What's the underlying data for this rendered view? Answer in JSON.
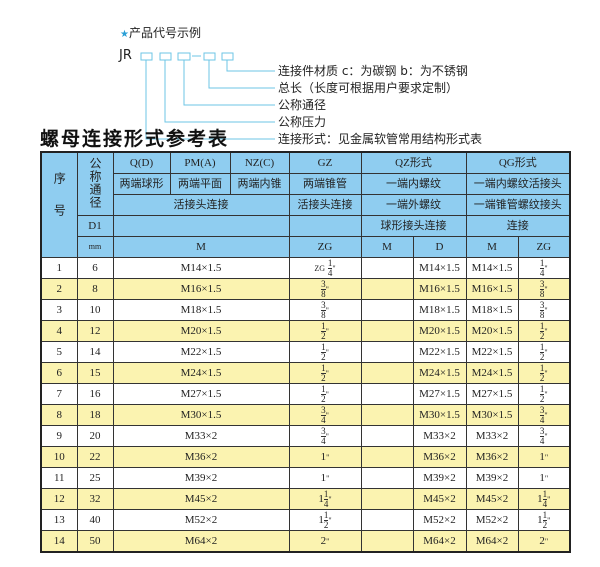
{
  "code_example": {
    "title": "产品代号示例",
    "prefix": "JR",
    "labels": [
      "连接件材质   c：为碳钢   b：为不锈钢",
      "总长（长度可根据用户要求定制）",
      "公称通径",
      "公称压力",
      "连接形式：见金属软管常用结构形式表"
    ],
    "accent_color": "#2a9fd6"
  },
  "section_title": "螺母连接形式参考表",
  "table": {
    "header": {
      "seq": "序号",
      "nominal": "公称通径",
      "q": "Q(D)",
      "pm": "PM(A)",
      "nz": "NZ(C)",
      "gz": "GZ",
      "qz": "QZ形式",
      "qg": "QG形式",
      "q_desc": "两端球形",
      "pm_desc": "两端平面",
      "nz_desc": "两端内锥",
      "gz_desc": "两端锥管",
      "qz_desc1": "一端内螺纹",
      "qg_desc1": "一端内螺纹活接头",
      "union": "活接头连接",
      "gz_union": "活接头连接",
      "qz_desc2": "一端外螺纹",
      "qg_desc2": "一端锥管螺纹接头",
      "d1": "D1",
      "qz_desc3": "球形接头连接",
      "qg_desc3": "连接",
      "mm": "mm",
      "m": "M",
      "zg": "ZG",
      "qz_m": "M",
      "qz_d": "D",
      "qg_m": "M",
      "qg_zg": "ZG"
    },
    "rows": [
      {
        "no": "1",
        "d1": "6",
        "m": "M14×1.5",
        "zg": {
          "prefix": "ZG",
          "whole": "",
          "num": "1",
          "den": "4"
        },
        "qz_m": "",
        "qz_d": "M14×1.5",
        "qg_m": "M14×1.5",
        "qg_zg": {
          "whole": "",
          "num": "1",
          "den": "4"
        }
      },
      {
        "no": "2",
        "d1": "8",
        "m": "M16×1.5",
        "zg": {
          "whole": "",
          "num": "3",
          "den": "8"
        },
        "qz_m": "",
        "qz_d": "M16×1.5",
        "qg_m": "M16×1.5",
        "qg_zg": {
          "whole": "",
          "num": "3",
          "den": "8"
        }
      },
      {
        "no": "3",
        "d1": "10",
        "m": "M18×1.5",
        "zg": {
          "whole": "",
          "num": "3",
          "den": "8"
        },
        "qz_m": "",
        "qz_d": "M18×1.5",
        "qg_m": "M18×1.5",
        "qg_zg": {
          "whole": "",
          "num": "3",
          "den": "8"
        }
      },
      {
        "no": "4",
        "d1": "12",
        "m": "M20×1.5",
        "zg": {
          "whole": "",
          "num": "1",
          "den": "2"
        },
        "qz_m": "",
        "qz_d": "M20×1.5",
        "qg_m": "M20×1.5",
        "qg_zg": {
          "whole": "",
          "num": "1",
          "den": "2"
        }
      },
      {
        "no": "5",
        "d1": "14",
        "m": "M22×1.5",
        "zg": {
          "whole": "",
          "num": "1",
          "den": "2"
        },
        "qz_m": "",
        "qz_d": "M22×1.5",
        "qg_m": "M22×1.5",
        "qg_zg": {
          "whole": "",
          "num": "1",
          "den": "2"
        }
      },
      {
        "no": "6",
        "d1": "15",
        "m": "M24×1.5",
        "zg": {
          "whole": "",
          "num": "1",
          "den": "2"
        },
        "qz_m": "",
        "qz_d": "M24×1.5",
        "qg_m": "M24×1.5",
        "qg_zg": {
          "whole": "",
          "num": "1",
          "den": "2"
        }
      },
      {
        "no": "7",
        "d1": "16",
        "m": "M27×1.5",
        "zg": {
          "whole": "",
          "num": "1",
          "den": "2"
        },
        "qz_m": "",
        "qz_d": "M27×1.5",
        "qg_m": "M27×1.5",
        "qg_zg": {
          "whole": "",
          "num": "1",
          "den": "2"
        }
      },
      {
        "no": "8",
        "d1": "18",
        "m": "M30×1.5",
        "zg": {
          "whole": "",
          "num": "3",
          "den": "4"
        },
        "qz_m": "",
        "qz_d": "M30×1.5",
        "qg_m": "M30×1.5",
        "qg_zg": {
          "whole": "",
          "num": "3",
          "den": "4"
        }
      },
      {
        "no": "9",
        "d1": "20",
        "m": "M33×2",
        "zg": {
          "whole": "",
          "num": "3",
          "den": "4"
        },
        "qz_m": "",
        "qz_d": "M33×2",
        "qg_m": "M33×2",
        "qg_zg": {
          "whole": "",
          "num": "3",
          "den": "4"
        }
      },
      {
        "no": "10",
        "d1": "22",
        "m": "M36×2",
        "zg": {
          "whole": "1",
          "num": "",
          "den": ""
        },
        "qz_m": "",
        "qz_d": "M36×2",
        "qg_m": "M36×2",
        "qg_zg": {
          "whole": "1",
          "num": "",
          "den": ""
        }
      },
      {
        "no": "11",
        "d1": "25",
        "m": "M39×2",
        "zg": {
          "whole": "1",
          "num": "",
          "den": ""
        },
        "qz_m": "",
        "qz_d": "M39×2",
        "qg_m": "M39×2",
        "qg_zg": {
          "whole": "1",
          "num": "",
          "den": ""
        }
      },
      {
        "no": "12",
        "d1": "32",
        "m": "M45×2",
        "zg": {
          "whole": "1",
          "num": "1",
          "den": "4"
        },
        "qz_m": "",
        "qz_d": "M45×2",
        "qg_m": "M45×2",
        "qg_zg": {
          "whole": "1",
          "num": "1",
          "den": "4"
        }
      },
      {
        "no": "13",
        "d1": "40",
        "m": "M52×2",
        "zg": {
          "whole": "1",
          "num": "1",
          "den": "2"
        },
        "qz_m": "",
        "qz_d": "M52×2",
        "qg_m": "M52×2",
        "qg_zg": {
          "whole": "1",
          "num": "1",
          "den": "2"
        }
      },
      {
        "no": "14",
        "d1": "50",
        "m": "M64×2",
        "zg": {
          "whole": "2",
          "num": "",
          "den": ""
        },
        "qz_m": "",
        "qz_d": "M64×2",
        "qg_m": "M64×2",
        "qg_zg": {
          "whole": "2",
          "num": "",
          "den": ""
        }
      }
    ],
    "inch_mark": "\"",
    "header_color": "#8fcdf0",
    "alt_row_color": "#fbf3b0"
  }
}
